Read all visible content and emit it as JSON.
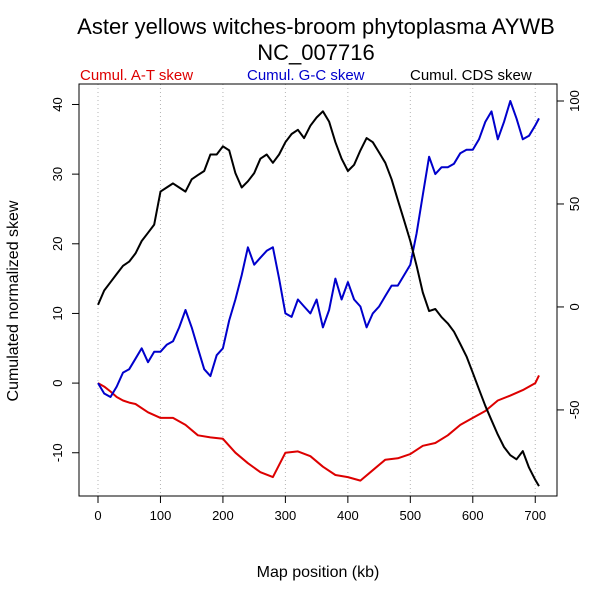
{
  "chart_data": {
    "type": "line",
    "title": "Aster yellows witches-broom phytoplasma AYWB",
    "subtitle": "NC_007716",
    "xlabel": "Map position (kb)",
    "ylabel": "Cumulated normalized skew",
    "xlim": [
      0,
      706
    ],
    "ylim": [
      -14.2,
      40.5
    ],
    "y2lim": [
      -85,
      100
    ],
    "x_ticks": [
      0,
      100,
      200,
      300,
      400,
      500,
      600,
      700
    ],
    "x_tick_labels": [
      "0",
      "100",
      "200",
      "300",
      "400",
      "500",
      "600",
      "700"
    ],
    "y_ticks": [
      -10,
      0,
      10,
      20,
      30,
      40
    ],
    "y_tick_labels": [
      "-10",
      "0",
      "10",
      "20",
      "30",
      "40"
    ],
    "y2_ticks": [
      -50,
      0,
      50,
      100
    ],
    "y2_tick_labels": [
      "-50",
      "0",
      "50",
      "100"
    ],
    "grid": "vertical-dotted",
    "legend_placement": "top",
    "series": [
      {
        "name": "Cumul. A-T skew",
        "color": "#dd0000",
        "axis": "left",
        "x": [
          0,
          10,
          20,
          30,
          40,
          50,
          60,
          80,
          100,
          120,
          140,
          160,
          180,
          200,
          220,
          240,
          260,
          280,
          300,
          320,
          340,
          360,
          380,
          400,
          420,
          440,
          460,
          480,
          500,
          520,
          540,
          560,
          580,
          600,
          620,
          640,
          660,
          680,
          700,
          706
        ],
        "y": [
          0,
          -0.5,
          -1.2,
          -2.0,
          -2.5,
          -2.8,
          -3.0,
          -4.2,
          -5.0,
          -5.0,
          -6.0,
          -7.5,
          -7.8,
          -8.0,
          -10.0,
          -11.5,
          -12.8,
          -13.5,
          -10.0,
          -9.8,
          -10.5,
          -12.0,
          -13.2,
          -13.5,
          -14.0,
          -12.5,
          -11.0,
          -10.8,
          -10.2,
          -9.0,
          -8.6,
          -7.5,
          -6.0,
          -5.0,
          -4.0,
          -2.5,
          -1.8,
          -1.0,
          0.0,
          1.1
        ]
      },
      {
        "name": "Cumul. G-C skew",
        "color": "#0000cc",
        "axis": "left",
        "x": [
          0,
          10,
          20,
          30,
          40,
          50,
          60,
          70,
          80,
          90,
          100,
          110,
          120,
          130,
          140,
          150,
          160,
          170,
          180,
          190,
          200,
          210,
          220,
          230,
          240,
          250,
          260,
          270,
          280,
          290,
          300,
          310,
          320,
          330,
          340,
          350,
          360,
          370,
          380,
          390,
          400,
          410,
          420,
          430,
          440,
          450,
          460,
          470,
          480,
          490,
          500,
          510,
          520,
          530,
          540,
          550,
          560,
          570,
          580,
          590,
          600,
          610,
          620,
          630,
          640,
          650,
          660,
          670,
          680,
          690,
          700,
          706
        ],
        "y": [
          0,
          -1.5,
          -2.0,
          -0.5,
          1.5,
          2.0,
          3.5,
          5.0,
          3.0,
          4.5,
          4.5,
          5.5,
          6.0,
          8.0,
          10.5,
          8.0,
          5.0,
          2.0,
          1.0,
          4.0,
          5.0,
          9.0,
          12.0,
          15.5,
          19.5,
          17.0,
          18.0,
          19.0,
          19.5,
          15.0,
          10.0,
          9.5,
          12.0,
          11.0,
          10.0,
          12.0,
          8.0,
          10.5,
          15.0,
          12.0,
          14.5,
          12.0,
          11.0,
          8.0,
          10.0,
          11.0,
          12.5,
          14.0,
          14.0,
          15.5,
          17.0,
          21.5,
          27.0,
          32.5,
          30.0,
          31.0,
          31.0,
          31.5,
          33.0,
          33.5,
          33.5,
          35.0,
          37.5,
          39.0,
          35.0,
          37.5,
          40.5,
          38.0,
          35.0,
          35.5,
          37.0,
          38.0
        ]
      },
      {
        "name": "Cumul. CDS skew",
        "color": "#000000",
        "axis": "right",
        "x": [
          0,
          10,
          20,
          30,
          40,
          50,
          60,
          70,
          80,
          90,
          100,
          110,
          120,
          130,
          140,
          150,
          160,
          170,
          180,
          190,
          200,
          210,
          220,
          230,
          240,
          250,
          260,
          270,
          280,
          290,
          300,
          310,
          320,
          330,
          340,
          350,
          360,
          370,
          380,
          390,
          400,
          410,
          420,
          430,
          440,
          450,
          460,
          470,
          480,
          490,
          500,
          510,
          520,
          530,
          540,
          550,
          560,
          570,
          580,
          590,
          600,
          610,
          620,
          630,
          640,
          650,
          660,
          670,
          680,
          690,
          700,
          706
        ],
        "y": [
          1,
          8,
          12,
          16,
          20,
          22,
          26,
          32,
          36,
          40,
          56,
          58,
          60,
          58,
          56,
          62,
          64,
          66,
          74,
          74,
          78,
          76,
          65,
          58,
          61,
          65,
          72,
          74,
          70,
          74,
          80,
          84,
          86,
          82,
          88,
          92,
          95,
          90,
          80,
          72,
          66,
          69,
          76,
          82,
          80,
          75,
          70,
          62,
          52,
          42,
          32,
          20,
          7,
          -2,
          -1,
          -5,
          -8,
          -12,
          -18,
          -24,
          -32,
          -40,
          -48,
          -55,
          -62,
          -68,
          -72,
          -74,
          -70,
          -78,
          -84,
          -87
        ]
      }
    ]
  }
}
